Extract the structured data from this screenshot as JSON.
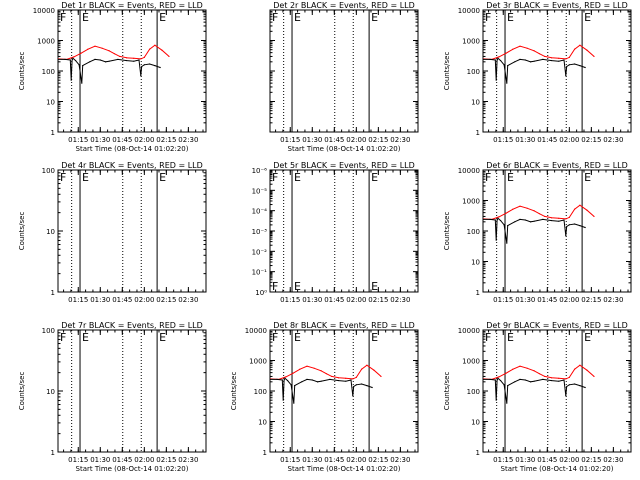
{
  "chart_data": [
    {
      "type": "line",
      "title": "Det 1r BLACK = Events, RED = LLD",
      "xlabel": "Start Time (08-Oct-14 01:02:20)",
      "ylabel": "Counts/sec",
      "yscale": "log",
      "ylim": [
        1,
        10000
      ],
      "ytick_labels": [
        "1",
        "10",
        "100",
        "1000",
        "10000"
      ],
      "xlim": [
        1.02,
        2.7
      ],
      "xtick_labels": [
        "01:15",
        "01:30",
        "01:45",
        "02:00",
        "02:15",
        "02:30"
      ],
      "dotted_lines": [
        1.175,
        1.755,
        1.965
      ],
      "solid_lines": [
        1.27,
        2.145
      ],
      "region_labels": [
        "F",
        "E",
        "E"
      ],
      "show_series": true,
      "series": [
        {
          "color": "#ff0000",
          "x": [
            1.02,
            1.12,
            1.2,
            1.28,
            1.36,
            1.44,
            1.52,
            1.6,
            1.66,
            1.72,
            1.8,
            1.88,
            1.96,
            2.0,
            2.06,
            2.12,
            2.2,
            2.28
          ],
          "y": [
            250,
            240,
            290,
            380,
            520,
            650,
            560,
            460,
            370,
            300,
            270,
            260,
            250,
            280,
            520,
            700,
            480,
            300
          ]
        },
        {
          "color": "#000000",
          "x": [
            1.02,
            1.1,
            1.16,
            1.17,
            1.18,
            1.19,
            1.22,
            1.26,
            1.29,
            1.3,
            1.38,
            1.44,
            1.5,
            1.56,
            1.6,
            1.7,
            1.8,
            1.88,
            1.94,
            1.96,
            1.97,
            2.0,
            2.06,
            2.12,
            2.18
          ],
          "y": [
            240,
            240,
            230,
            50,
            230,
            260,
            220,
            160,
            40,
            150,
            200,
            240,
            230,
            200,
            210,
            240,
            220,
            210,
            230,
            70,
            140,
            160,
            170,
            150,
            130
          ]
        }
      ]
    },
    {
      "type": "line",
      "title": "Det 2r BLACK = Events, RED = LLD",
      "xlabel": "Start Time (08-Oct-14 01:02:20)",
      "ylabel": "",
      "yscale": "log",
      "ylim": [
        1,
        10000
      ],
      "ytick_labels": [],
      "xlim": [
        1.02,
        2.7
      ],
      "xtick_labels": [
        "01:15",
        "01:30",
        "01:45",
        "02:00",
        "02:15",
        "02:30"
      ],
      "dotted_lines": [
        1.175,
        1.755,
        1.965
      ],
      "solid_lines": [
        1.27,
        2.145
      ],
      "region_labels": [
        "F",
        "E",
        "E"
      ],
      "show_series": false,
      "series": []
    },
    {
      "type": "line",
      "title": "Det 3r BLACK = Events, RED = LLD",
      "xlabel": "",
      "ylabel": "Counts/sec",
      "yscale": "log",
      "ylim": [
        1,
        10000
      ],
      "ytick_labels": [
        "1",
        "10",
        "100",
        "1000",
        "10000"
      ],
      "xlim": [
        1.02,
        2.7
      ],
      "xtick_labels": [
        "01:15",
        "01:30",
        "01:45",
        "02:00",
        "02:15",
        "02:30"
      ],
      "dotted_lines": [
        1.175,
        1.755,
        1.965
      ],
      "solid_lines": [
        1.27,
        2.145
      ],
      "region_labels": [
        "F",
        "E",
        "E"
      ],
      "show_series": true,
      "series": [
        {
          "color": "#ff0000",
          "x": [
            1.02,
            1.12,
            1.2,
            1.28,
            1.36,
            1.44,
            1.52,
            1.6,
            1.66,
            1.72,
            1.8,
            1.88,
            1.96,
            2.0,
            2.06,
            2.12,
            2.2,
            2.28
          ],
          "y": [
            250,
            240,
            290,
            380,
            520,
            650,
            560,
            460,
            370,
            300,
            270,
            260,
            250,
            280,
            520,
            700,
            480,
            300
          ]
        },
        {
          "color": "#000000",
          "x": [
            1.02,
            1.1,
            1.16,
            1.17,
            1.18,
            1.19,
            1.22,
            1.26,
            1.29,
            1.3,
            1.38,
            1.44,
            1.5,
            1.56,
            1.6,
            1.7,
            1.8,
            1.88,
            1.94,
            1.96,
            1.97,
            2.0,
            2.06,
            2.12,
            2.18
          ],
          "y": [
            240,
            240,
            230,
            50,
            230,
            260,
            220,
            160,
            40,
            150,
            200,
            240,
            230,
            200,
            210,
            240,
            220,
            210,
            230,
            70,
            140,
            160,
            170,
            150,
            130
          ]
        }
      ]
    },
    {
      "type": "line",
      "title": "Det 4r BLACK = Events, RED = LLD",
      "xlabel": "",
      "ylabel": "Counts/sec",
      "yscale": "log",
      "ylim": [
        1,
        100
      ],
      "ytick_labels": [
        "1",
        "10",
        "100"
      ],
      "xlim": [
        1.02,
        2.7
      ],
      "xtick_labels": [
        "01:15",
        "01:30",
        "01:45",
        "02:00",
        "02:15",
        "02:30"
      ],
      "dotted_lines": [
        1.175,
        1.755,
        1.965
      ],
      "solid_lines": [
        1.27,
        2.145
      ],
      "region_labels": [
        "F",
        "E",
        "E"
      ],
      "show_series": false,
      "series": []
    },
    {
      "type": "line",
      "title": "Det 5r BLACK = Events, RED = LLD",
      "xlabel": "",
      "ylabel": "",
      "yscale": "log",
      "ylim": [
        1e-06,
        1
      ],
      "ytick_labels": [
        "10⁻⁶",
        "10⁻⁵",
        "10⁻⁴",
        "10⁻³",
        "10⁻²",
        "10⁻¹",
        "10⁰"
      ],
      "ytick_order": "top-down",
      "xlim": [
        1.02,
        2.7
      ],
      "xtick_labels": [
        "01:15",
        "01:30",
        "01:45",
        "02:00",
        "02:15",
        "02:30"
      ],
      "dotted_lines": [
        1.175,
        1.755,
        1.965
      ],
      "solid_lines": [
        1.27,
        2.145
      ],
      "region_labels": [
        "F",
        "E",
        "E"
      ],
      "show_series": false,
      "series": []
    },
    {
      "type": "line",
      "title": "Det 6r BLACK = Events, RED = LLD",
      "xlabel": "",
      "ylabel": "Counts/sec",
      "yscale": "log",
      "ylim": [
        1,
        10000
      ],
      "ytick_labels": [
        "1",
        "10",
        "100",
        "1000",
        "10000"
      ],
      "xlim": [
        1.02,
        2.7
      ],
      "xtick_labels": [
        "01:15",
        "01:30",
        "01:45",
        "02:00",
        "02:15",
        "02:30"
      ],
      "dotted_lines": [
        1.175,
        1.755,
        1.965
      ],
      "solid_lines": [
        1.27,
        2.145
      ],
      "region_labels": [
        "F",
        "E",
        "E"
      ],
      "show_series": true,
      "series": [
        {
          "color": "#ff0000",
          "x": [
            1.02,
            1.12,
            1.2,
            1.28,
            1.36,
            1.44,
            1.52,
            1.6,
            1.66,
            1.72,
            1.8,
            1.88,
            1.96,
            2.0,
            2.06,
            2.12,
            2.2,
            2.28
          ],
          "y": [
            250,
            240,
            290,
            380,
            520,
            650,
            560,
            460,
            370,
            300,
            270,
            260,
            250,
            280,
            520,
            700,
            480,
            300
          ]
        },
        {
          "color": "#000000",
          "x": [
            1.02,
            1.1,
            1.16,
            1.17,
            1.18,
            1.19,
            1.22,
            1.26,
            1.29,
            1.3,
            1.38,
            1.44,
            1.5,
            1.56,
            1.6,
            1.7,
            1.8,
            1.88,
            1.94,
            1.96,
            1.97,
            2.0,
            2.06,
            2.12,
            2.18
          ],
          "y": [
            240,
            240,
            230,
            50,
            230,
            260,
            220,
            160,
            40,
            150,
            200,
            240,
            230,
            200,
            210,
            240,
            220,
            210,
            230,
            70,
            140,
            160,
            170,
            150,
            130
          ]
        }
      ]
    },
    {
      "type": "line",
      "title": "Det 7r BLACK = Events, RED = LLD",
      "xlabel": "Start Time (08-Oct-14 01:02:20)",
      "ylabel": "Counts/sec",
      "yscale": "log",
      "ylim": [
        1,
        100
      ],
      "ytick_labels": [
        "1",
        "10",
        "100"
      ],
      "xlim": [
        1.02,
        2.7
      ],
      "xtick_labels": [
        "01:15",
        "01:30",
        "01:45",
        "02:00",
        "02:15",
        "02:30"
      ],
      "dotted_lines": [
        1.175,
        1.755,
        1.965
      ],
      "solid_lines": [
        1.27,
        2.145
      ],
      "region_labels": [
        "F",
        "E",
        "E"
      ],
      "show_series": false,
      "series": []
    },
    {
      "type": "line",
      "title": "Det 8r BLACK = Events, RED = LLD",
      "xlabel": "Start Time (08-Oct-14 01:02:20)",
      "ylabel": "Counts/sec",
      "yscale": "log",
      "ylim": [
        1,
        10000
      ],
      "ytick_labels": [
        "1",
        "10",
        "100",
        "1000",
        "10000"
      ],
      "xlim": [
        1.02,
        2.7
      ],
      "xtick_labels": [
        "01:15",
        "01:30",
        "01:45",
        "02:00",
        "02:15",
        "02:30"
      ],
      "dotted_lines": [
        1.175,
        1.755,
        1.965
      ],
      "solid_lines": [
        1.27,
        2.145
      ],
      "region_labels": [
        "F",
        "E",
        "E"
      ],
      "show_series": true,
      "series": [
        {
          "color": "#ff0000",
          "x": [
            1.02,
            1.12,
            1.2,
            1.28,
            1.36,
            1.44,
            1.52,
            1.6,
            1.66,
            1.72,
            1.8,
            1.88,
            1.96,
            2.0,
            2.06,
            2.12,
            2.2,
            2.28
          ],
          "y": [
            250,
            240,
            290,
            380,
            520,
            650,
            560,
            460,
            370,
            300,
            270,
            260,
            250,
            280,
            520,
            700,
            480,
            300
          ]
        },
        {
          "color": "#000000",
          "x": [
            1.02,
            1.1,
            1.16,
            1.17,
            1.18,
            1.19,
            1.22,
            1.26,
            1.29,
            1.3,
            1.38,
            1.44,
            1.5,
            1.56,
            1.6,
            1.7,
            1.8,
            1.88,
            1.94,
            1.96,
            1.97,
            2.0,
            2.06,
            2.12,
            2.18
          ],
          "y": [
            240,
            240,
            230,
            50,
            230,
            260,
            220,
            160,
            40,
            150,
            200,
            240,
            230,
            200,
            210,
            240,
            220,
            210,
            230,
            70,
            140,
            160,
            170,
            150,
            130
          ]
        }
      ]
    },
    {
      "type": "line",
      "title": "Det 9r BLACK = Events, RED = LLD",
      "xlabel": "Start Time (08-Oct-14 01:02:20)",
      "ylabel": "Counts/sec",
      "yscale": "log",
      "ylim": [
        1,
        10000
      ],
      "ytick_labels": [
        "1",
        "10",
        "100",
        "1000",
        "10000"
      ],
      "xlim": [
        1.02,
        2.7
      ],
      "xtick_labels": [
        "01:15",
        "01:30",
        "01:45",
        "02:00",
        "02:15",
        "02:30"
      ],
      "dotted_lines": [
        1.175,
        1.755,
        1.965
      ],
      "solid_lines": [
        1.27,
        2.145
      ],
      "region_labels": [
        "F",
        "E",
        "E"
      ],
      "show_series": true,
      "series": [
        {
          "color": "#ff0000",
          "x": [
            1.02,
            1.12,
            1.2,
            1.28,
            1.36,
            1.44,
            1.52,
            1.6,
            1.66,
            1.72,
            1.8,
            1.88,
            1.96,
            2.0,
            2.06,
            2.12,
            2.2,
            2.28
          ],
          "y": [
            250,
            240,
            290,
            380,
            520,
            650,
            560,
            460,
            370,
            300,
            270,
            260,
            250,
            280,
            520,
            700,
            480,
            300
          ]
        },
        {
          "color": "#000000",
          "x": [
            1.02,
            1.1,
            1.16,
            1.17,
            1.18,
            1.19,
            1.22,
            1.26,
            1.29,
            1.3,
            1.38,
            1.44,
            1.5,
            1.56,
            1.6,
            1.7,
            1.8,
            1.88,
            1.94,
            1.96,
            1.97,
            2.0,
            2.06,
            2.12,
            2.18
          ],
          "y": [
            240,
            240,
            230,
            50,
            230,
            260,
            220,
            160,
            40,
            150,
            200,
            240,
            230,
            200,
            210,
            240,
            220,
            210,
            230,
            70,
            140,
            160,
            170,
            150,
            130
          ]
        }
      ]
    }
  ]
}
